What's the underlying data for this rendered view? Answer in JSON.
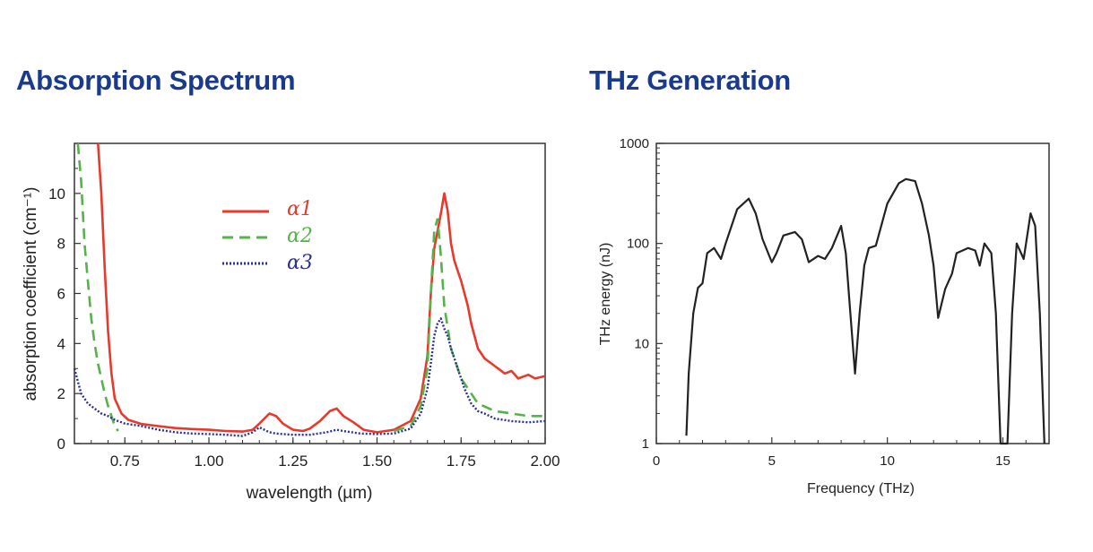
{
  "chart_data": [
    {
      "type": "line",
      "title": "Absorption Spectrum",
      "xlabel": "wavelength (µm)",
      "ylabel": "absorption coefficient (cm⁻¹)",
      "xlim": [
        0.6,
        2.0
      ],
      "ylim": [
        0,
        12
      ],
      "x_ticks": [
        0.75,
        1.0,
        1.25,
        1.5,
        1.75,
        2.0
      ],
      "x_tick_labels": [
        "0.75",
        "1.00",
        "1.25",
        "1.50",
        "1.75",
        "2.00"
      ],
      "y_ticks": [
        0,
        2,
        4,
        6,
        8,
        10
      ],
      "y_tick_labels": [
        "0",
        "2",
        "4",
        "6",
        "8",
        "10"
      ],
      "legend": "upper-middle",
      "series": [
        {
          "name": "α1",
          "color": "#e8392b",
          "style": "solid",
          "x": [
            0.67,
            0.68,
            0.69,
            0.7,
            0.71,
            0.72,
            0.74,
            0.76,
            0.8,
            0.85,
            0.9,
            0.95,
            1.0,
            1.05,
            1.1,
            1.13,
            1.15,
            1.18,
            1.2,
            1.22,
            1.25,
            1.28,
            1.3,
            1.33,
            1.36,
            1.38,
            1.4,
            1.43,
            1.46,
            1.5,
            1.55,
            1.6,
            1.63,
            1.65,
            1.66,
            1.67,
            1.68,
            1.69,
            1.7,
            1.71,
            1.72,
            1.73,
            1.75,
            1.77,
            1.78,
            1.8,
            1.82,
            1.85,
            1.88,
            1.9,
            1.92,
            1.95,
            1.97,
            2.0
          ],
          "values": [
            12.0,
            10.0,
            7.0,
            4.5,
            2.8,
            1.8,
            1.2,
            0.95,
            0.78,
            0.7,
            0.62,
            0.58,
            0.55,
            0.5,
            0.48,
            0.55,
            0.8,
            1.2,
            1.1,
            0.8,
            0.55,
            0.5,
            0.6,
            0.9,
            1.3,
            1.4,
            1.1,
            0.85,
            0.55,
            0.45,
            0.55,
            0.9,
            1.8,
            3.5,
            6.0,
            7.8,
            8.5,
            9.2,
            10.0,
            9.3,
            8.0,
            7.3,
            6.5,
            5.5,
            4.8,
            3.8,
            3.4,
            3.1,
            2.8,
            2.9,
            2.6,
            2.75,
            2.6,
            2.7
          ]
        },
        {
          "name": "α2",
          "color": "#56b24a",
          "style": "dashed",
          "x": [
            0.61,
            0.62,
            0.63,
            0.64,
            0.65,
            0.66,
            0.67,
            0.68,
            0.69,
            0.7,
            0.71,
            0.72,
            0.73
          ],
          "values": [
            12.0,
            10.5,
            8.0,
            6.5,
            5.0,
            4.0,
            3.2,
            2.6,
            2.0,
            1.5,
            1.1,
            0.7,
            0.5
          ],
          "x_ext": [
            1.55,
            1.6,
            1.63,
            1.65,
            1.66,
            1.67,
            1.68,
            1.69,
            1.7,
            1.72,
            1.75,
            1.8,
            1.85,
            1.9,
            1.95,
            2.0
          ],
          "values_ext": [
            0.5,
            0.7,
            1.5,
            3.0,
            6.0,
            8.5,
            9.0,
            7.5,
            5.5,
            3.8,
            2.6,
            1.6,
            1.3,
            1.2,
            1.1,
            1.1
          ]
        },
        {
          "name": "α3",
          "color": "#2a2f9a",
          "style": "dotted",
          "x": [
            0.6,
            0.62,
            0.64,
            0.66,
            0.68,
            0.7,
            0.72,
            0.75,
            0.8,
            0.85,
            0.9,
            0.95,
            1.0,
            1.05,
            1.1,
            1.13,
            1.15,
            1.18,
            1.2,
            1.25,
            1.3,
            1.35,
            1.38,
            1.4,
            1.45,
            1.5,
            1.55,
            1.6,
            1.63,
            1.65,
            1.66,
            1.67,
            1.68,
            1.69,
            1.7,
            1.71,
            1.72,
            1.74,
            1.76,
            1.78,
            1.8,
            1.82,
            1.85,
            1.9,
            1.95,
            2.0
          ],
          "values": [
            3.0,
            2.0,
            1.6,
            1.4,
            1.2,
            1.1,
            0.95,
            0.8,
            0.7,
            0.55,
            0.45,
            0.4,
            0.38,
            0.35,
            0.3,
            0.45,
            0.65,
            0.45,
            0.4,
            0.35,
            0.35,
            0.45,
            0.55,
            0.5,
            0.4,
            0.38,
            0.4,
            0.6,
            1.2,
            2.2,
            3.2,
            4.3,
            4.8,
            5.0,
            4.6,
            4.3,
            3.8,
            3.0,
            2.2,
            1.6,
            1.3,
            1.2,
            1.0,
            0.9,
            0.85,
            0.9
          ]
        }
      ]
    },
    {
      "type": "line",
      "title": "THz Generation",
      "xlabel": "Frequency (THz)",
      "ylabel": "THz energy (nJ)",
      "xlim": [
        0,
        17
      ],
      "ylim": [
        1,
        1000
      ],
      "yscale": "log",
      "x_ticks": [
        0,
        5,
        10,
        15
      ],
      "x_tick_labels": [
        "0",
        "5",
        "10",
        "15"
      ],
      "y_ticks": [
        1,
        10,
        100,
        1000
      ],
      "y_tick_labels": [
        "1",
        "10",
        "100",
        "1000"
      ],
      "series": [
        {
          "color": "#222222",
          "x": [
            1.3,
            1.4,
            1.6,
            1.8,
            2.0,
            2.2,
            2.5,
            2.8,
            3.0,
            3.5,
            4.0,
            4.3,
            4.6,
            5.0,
            5.2,
            5.5,
            6.0,
            6.3,
            6.6,
            7.0,
            7.3,
            7.6,
            8.0,
            8.2,
            8.4,
            8.6,
            8.8,
            9.0,
            9.2,
            9.5,
            10.0,
            10.5,
            10.8,
            11.2,
            11.5,
            11.8,
            12.0,
            12.2,
            12.5,
            12.8,
            13.0,
            13.5,
            13.8,
            14.0,
            14.2,
            14.5,
            14.7,
            14.9,
            15.2,
            15.4,
            15.6,
            15.9,
            16.2,
            16.4,
            16.6,
            16.8
          ],
          "values": [
            1.2,
            5,
            20,
            36,
            40,
            80,
            90,
            70,
            100,
            220,
            280,
            200,
            110,
            65,
            80,
            120,
            130,
            110,
            65,
            75,
            70,
            90,
            150,
            80,
            20,
            5,
            20,
            60,
            90,
            95,
            250,
            400,
            440,
            420,
            250,
            120,
            60,
            18,
            35,
            50,
            80,
            90,
            85,
            60,
            100,
            80,
            20,
            1,
            1,
            20,
            100,
            70,
            200,
            150,
            20,
            1
          ]
        }
      ]
    }
  ]
}
